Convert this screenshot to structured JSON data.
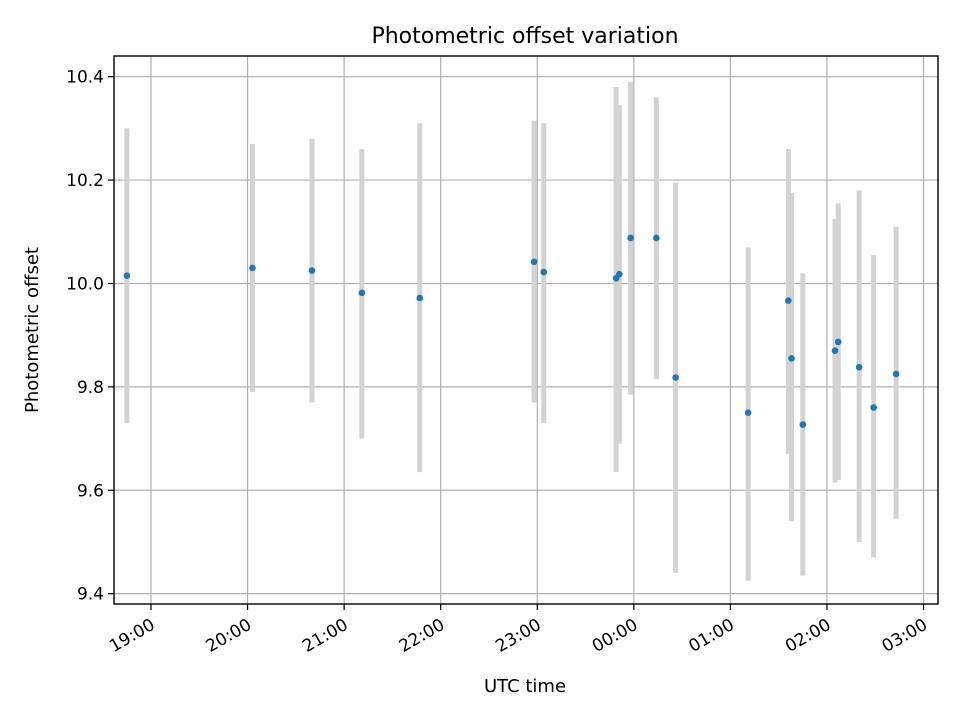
{
  "chart_data": {
    "type": "scatter",
    "title": "Photometric offset variation",
    "xlabel": "UTC time",
    "ylabel": "Photometric offset",
    "x_axis": "time (HH:MM, UTC), night of observation crossing midnight",
    "xlim": [
      "18:37",
      "03:09"
    ],
    "ylim": [
      9.38,
      10.44
    ],
    "xticks": [
      "19:00",
      "20:00",
      "21:00",
      "22:00",
      "23:00",
      "00:00",
      "01:00",
      "02:00",
      "03:00"
    ],
    "yticks": [
      "9.4",
      "9.6",
      "9.8",
      "10.0",
      "10.2",
      "10.4"
    ],
    "ytick_values": [
      9.4,
      9.6,
      9.8,
      10.0,
      10.2,
      10.4
    ],
    "grid": true,
    "legend": "none",
    "colors": {
      "point": "#1f77b4",
      "errorbar": "#d3d3d3",
      "grid": "#b0b0b0"
    },
    "points": [
      {
        "t": "18:45",
        "y": 10.015,
        "ylo": 9.73,
        "yhi": 10.3
      },
      {
        "t": "20:03",
        "y": 10.03,
        "ylo": 9.79,
        "yhi": 10.27
      },
      {
        "t": "20:40",
        "y": 10.025,
        "ylo": 9.77,
        "yhi": 10.28
      },
      {
        "t": "21:11",
        "y": 9.982,
        "ylo": 9.7,
        "yhi": 10.26
      },
      {
        "t": "21:47",
        "y": 9.972,
        "ylo": 9.635,
        "yhi": 10.31
      },
      {
        "t": "22:58",
        "y": 10.042,
        "ylo": 9.77,
        "yhi": 10.315
      },
      {
        "t": "23:04",
        "y": 10.022,
        "ylo": 9.73,
        "yhi": 10.31
      },
      {
        "t": "23:49",
        "y": 10.01,
        "ylo": 9.635,
        "yhi": 10.38
      },
      {
        "t": "23:51",
        "y": 10.018,
        "ylo": 9.69,
        "yhi": 10.345
      },
      {
        "t": "23:58",
        "y": 10.088,
        "ylo": 9.785,
        "yhi": 10.39
      },
      {
        "t": "00:14",
        "y": 10.088,
        "ylo": 9.815,
        "yhi": 10.36
      },
      {
        "t": "00:26",
        "y": 9.818,
        "ylo": 9.44,
        "yhi": 10.195
      },
      {
        "t": "01:11",
        "y": 9.75,
        "ylo": 9.425,
        "yhi": 10.07
      },
      {
        "t": "01:36",
        "y": 9.967,
        "ylo": 9.67,
        "yhi": 10.26
      },
      {
        "t": "01:38",
        "y": 9.855,
        "ylo": 9.54,
        "yhi": 10.175
      },
      {
        "t": "01:45",
        "y": 9.727,
        "ylo": 9.435,
        "yhi": 10.02
      },
      {
        "t": "02:05",
        "y": 9.87,
        "ylo": 9.615,
        "yhi": 10.125
      },
      {
        "t": "02:07",
        "y": 9.887,
        "ylo": 9.62,
        "yhi": 10.155
      },
      {
        "t": "02:20",
        "y": 9.838,
        "ylo": 9.5,
        "yhi": 10.18
      },
      {
        "t": "02:29",
        "y": 9.76,
        "ylo": 9.47,
        "yhi": 10.055
      },
      {
        "t": "02:43",
        "y": 9.825,
        "ylo": 9.545,
        "yhi": 10.11
      }
    ]
  }
}
